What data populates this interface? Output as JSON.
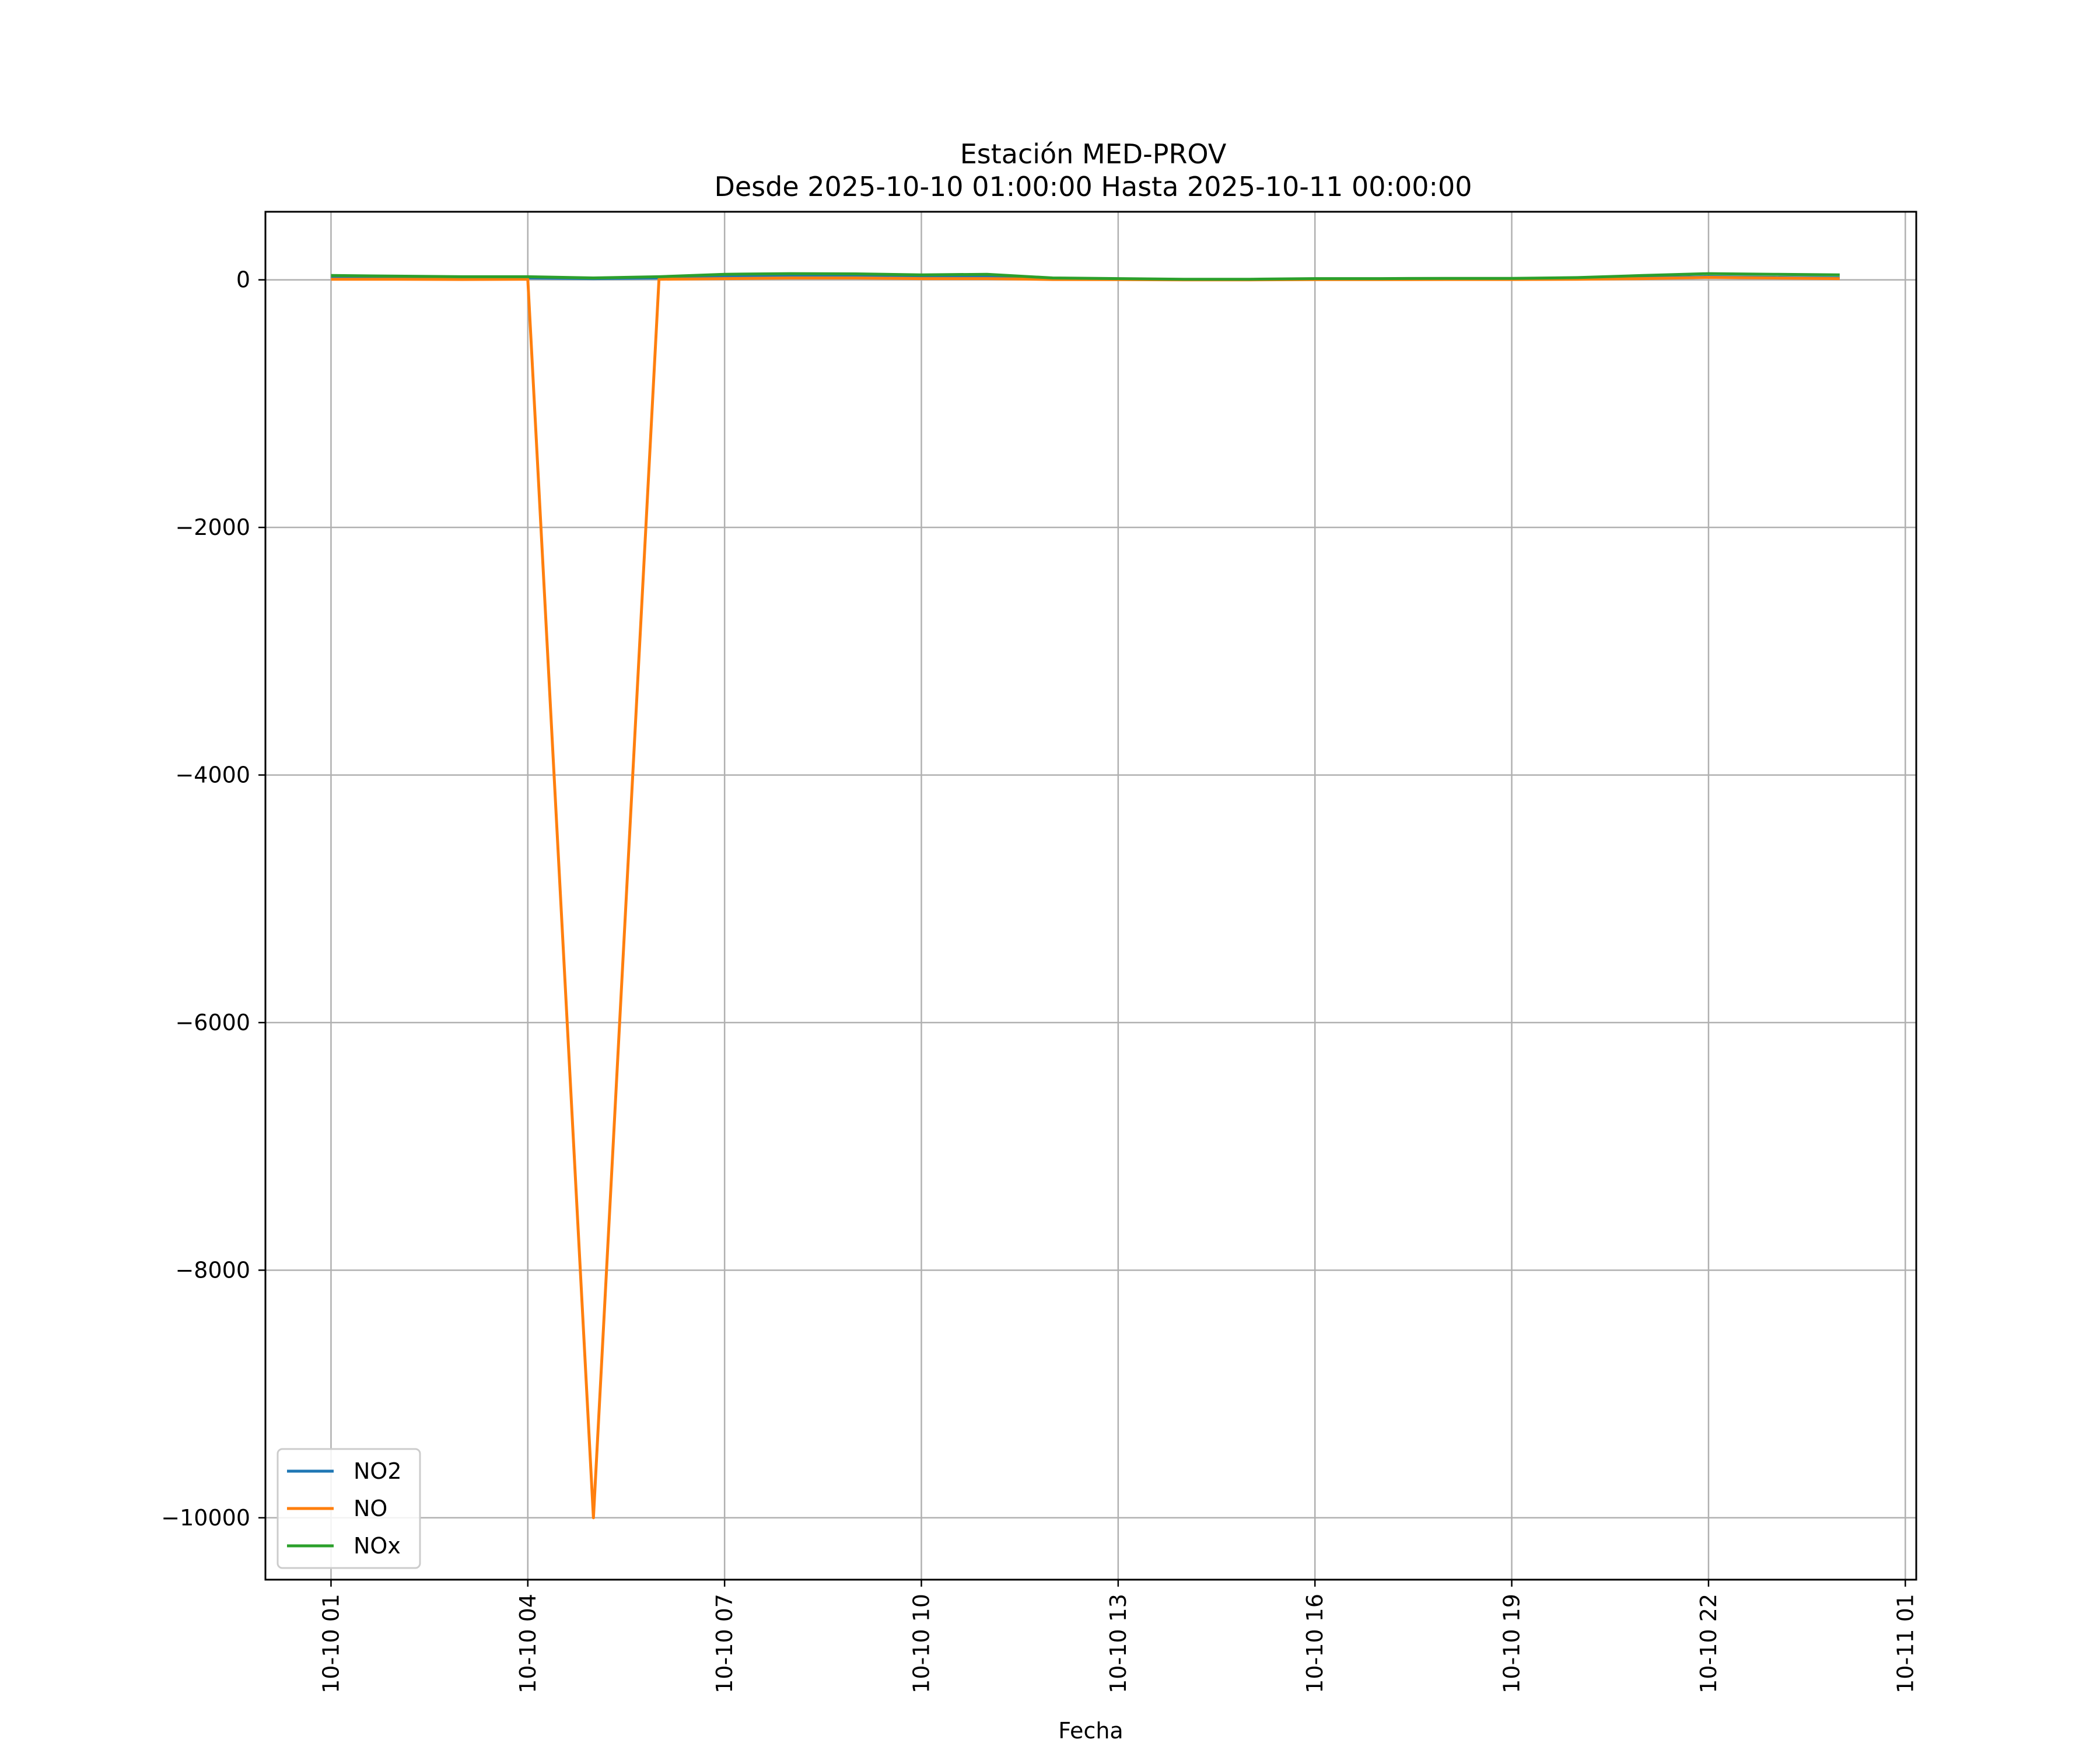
{
  "chart_data": {
    "type": "line",
    "title": "Estación MED-PROV",
    "subtitle": "Desde 2025-10-10 01:00:00 Hasta 2025-10-11 00:00:00",
    "xlabel": "Fecha",
    "ylabel": "",
    "x": [
      "2025-10-10 01:00",
      "2025-10-10 02:00",
      "2025-10-10 03:00",
      "2025-10-10 04:00",
      "2025-10-10 05:00",
      "2025-10-10 06:00",
      "2025-10-10 07:00",
      "2025-10-10 08:00",
      "2025-10-10 09:00",
      "2025-10-10 10:00",
      "2025-10-10 11:00",
      "2025-10-10 12:00",
      "2025-10-10 13:00",
      "2025-10-10 14:00",
      "2025-10-10 15:00",
      "2025-10-10 16:00",
      "2025-10-10 17:00",
      "2025-10-10 18:00",
      "2025-10-10 19:00",
      "2025-10-10 20:00",
      "2025-10-10 21:00",
      "2025-10-10 22:00",
      "2025-10-10 23:00",
      "2025-10-11 00:00"
    ],
    "series": [
      {
        "name": "NO2",
        "color": "#1f77b4",
        "values": [
          25,
          20,
          15,
          15,
          10,
          15,
          25,
          30,
          30,
          25,
          25,
          10,
          5,
          2,
          2,
          5,
          5,
          8,
          8,
          10,
          15,
          25,
          20,
          15
        ]
      },
      {
        "name": "NO",
        "color": "#ff7f0e",
        "values": [
          5,
          5,
          3,
          5,
          -10000,
          5,
          10,
          15,
          15,
          10,
          10,
          3,
          2,
          0,
          0,
          2,
          2,
          3,
          3,
          5,
          10,
          20,
          15,
          10
        ]
      },
      {
        "name": "NOx",
        "color": "#2ca02c",
        "values": [
          35,
          30,
          25,
          25,
          15,
          25,
          45,
          50,
          48,
          40,
          45,
          15,
          10,
          5,
          5,
          10,
          10,
          12,
          12,
          18,
          35,
          50,
          45,
          40
        ]
      }
    ],
    "ylim": [
      -10500,
      550
    ],
    "yticks": [
      0,
      -2000,
      -4000,
      -6000,
      -8000,
      -10000
    ],
    "ytick_labels": [
      "0",
      "−2000",
      "−4000",
      "−6000",
      "−8000",
      "−10000"
    ],
    "xlim": [
      "2025-10-10 00:00",
      "2025-10-11 01:10"
    ],
    "xticks": [
      "2025-10-10 01:00",
      "2025-10-10 04:00",
      "2025-10-10 07:00",
      "2025-10-10 10:00",
      "2025-10-10 13:00",
      "2025-10-10 16:00",
      "2025-10-10 19:00",
      "2025-10-10 22:00",
      "2025-10-11 01:00"
    ],
    "xtick_labels": [
      "10-10 01",
      "10-10 04",
      "10-10 07",
      "10-10 10",
      "10-10 13",
      "10-10 16",
      "10-10 19",
      "10-10 22",
      "10-11 01"
    ],
    "grid": true,
    "legend_position": "lower-left"
  }
}
